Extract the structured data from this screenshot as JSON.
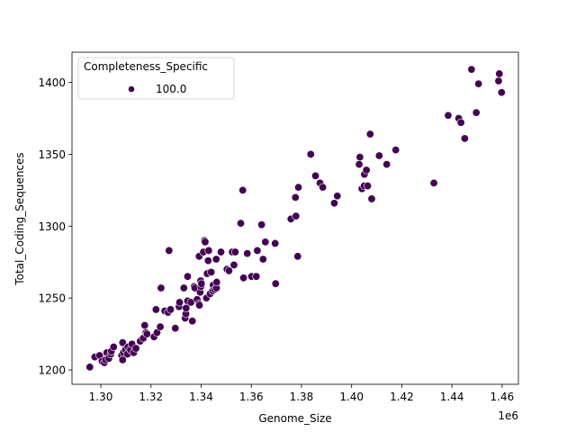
{
  "chart_data": {
    "type": "scatter",
    "xlabel": "Genome_Size",
    "ylabel": "Total_Coding_Sequences",
    "x_offset_label": "1e6",
    "x_scale": 1000000,
    "xlim": [
      1.2885,
      1.4665
    ],
    "ylim": [
      1190,
      1421
    ],
    "xticks": [
      1.3,
      1.32,
      1.34,
      1.36,
      1.38,
      1.4,
      1.42,
      1.44,
      1.46
    ],
    "xtick_labels": [
      "1.30",
      "1.32",
      "1.34",
      "1.36",
      "1.38",
      "1.40",
      "1.42",
      "1.44",
      "1.46"
    ],
    "yticks": [
      1200,
      1250,
      1300,
      1350,
      1400
    ],
    "ytick_labels": [
      "1200",
      "1250",
      "1300",
      "1350",
      "1400"
    ],
    "grid": false,
    "legend": {
      "title": "Completeness_Specific",
      "placement": "top-left",
      "entries": [
        {
          "label": "100.0",
          "color": "#440154"
        }
      ]
    },
    "series": [
      {
        "label": "100.0",
        "color": "#440154",
        "points": [
          [
            1.2956,
            1202
          ],
          [
            1.2976,
            1209
          ],
          [
            1.2995,
            1210
          ],
          [
            1.3005,
            1206
          ],
          [
            1.3014,
            1205
          ],
          [
            1.3019,
            1207
          ],
          [
            1.3024,
            1212
          ],
          [
            1.3032,
            1208
          ],
          [
            1.304,
            1211
          ],
          [
            1.3042,
            1213
          ],
          [
            1.3051,
            1216
          ],
          [
            1.3083,
            1210
          ],
          [
            1.3087,
            1207
          ],
          [
            1.309,
            1212
          ],
          [
            1.3098,
            1214
          ],
          [
            1.3087,
            1219
          ],
          [
            1.3108,
            1216
          ],
          [
            1.3106,
            1211
          ],
          [
            1.3118,
            1214
          ],
          [
            1.3124,
            1218
          ],
          [
            1.3131,
            1212
          ],
          [
            1.314,
            1215
          ],
          [
            1.3157,
            1220
          ],
          [
            1.3169,
            1222
          ],
          [
            1.3175,
            1231
          ],
          [
            1.318,
            1226
          ],
          [
            1.3184,
            1225
          ],
          [
            1.3212,
            1223
          ],
          [
            1.3224,
            1226
          ],
          [
            1.322,
            1242
          ],
          [
            1.3237,
            1230
          ],
          [
            1.324,
            1257
          ],
          [
            1.3255,
            1241
          ],
          [
            1.3268,
            1240
          ],
          [
            1.3278,
            1242
          ],
          [
            1.3272,
            1283
          ],
          [
            1.3297,
            1229
          ],
          [
            1.3312,
            1244
          ],
          [
            1.3314,
            1247
          ],
          [
            1.3331,
            1257
          ],
          [
            1.3336,
            1236
          ],
          [
            1.3339,
            1239
          ],
          [
            1.334,
            1243
          ],
          [
            1.3346,
            1248
          ],
          [
            1.3346,
            1265
          ],
          [
            1.3359,
            1247
          ],
          [
            1.3365,
            1234
          ],
          [
            1.3372,
            1258
          ],
          [
            1.3375,
            1257
          ],
          [
            1.3384,
            1249
          ],
          [
            1.3391,
            1246
          ],
          [
            1.3393,
            1245
          ],
          [
            1.3396,
            1254
          ],
          [
            1.3398,
            1262
          ],
          [
            1.3399,
            1258
          ],
          [
            1.3392,
            1279
          ],
          [
            1.3401,
            1260
          ],
          [
            1.3409,
            1282
          ],
          [
            1.3414,
            1290
          ],
          [
            1.3416,
            1289
          ],
          [
            1.3421,
            1250
          ],
          [
            1.3424,
            1267
          ],
          [
            1.3428,
            1276
          ],
          [
            1.343,
            1283
          ],
          [
            1.3436,
            1253
          ],
          [
            1.344,
            1268
          ],
          [
            1.3446,
            1255
          ],
          [
            1.3448,
            1259
          ],
          [
            1.3454,
            1256
          ],
          [
            1.3461,
            1257
          ],
          [
            1.3462,
            1261
          ],
          [
            1.346,
            1277
          ],
          [
            1.3479,
            1282
          ],
          [
            1.3503,
            1270
          ],
          [
            1.3511,
            1269
          ],
          [
            1.3524,
            1282
          ],
          [
            1.3531,
            1273
          ],
          [
            1.3536,
            1282
          ],
          [
            1.3558,
            1302
          ],
          [
            1.3569,
            1264
          ],
          [
            1.3566,
            1325
          ],
          [
            1.3584,
            1281
          ],
          [
            1.3601,
            1265
          ],
          [
            1.362,
            1265
          ],
          [
            1.3624,
            1283
          ],
          [
            1.3641,
            1301
          ],
          [
            1.3647,
            1277
          ],
          [
            1.3656,
            1289
          ],
          [
            1.3695,
            1288
          ],
          [
            1.3697,
            1260
          ],
          [
            1.3758,
            1305
          ],
          [
            1.3776,
            1320
          ],
          [
            1.3778,
            1307
          ],
          [
            1.3785,
            1279
          ],
          [
            1.3788,
            1327
          ],
          [
            1.3837,
            1350
          ],
          [
            1.3856,
            1335
          ],
          [
            1.3874,
            1330
          ],
          [
            1.3885,
            1327
          ],
          [
            1.3931,
            1316
          ],
          [
            1.3943,
            1321
          ],
          [
            1.4033,
            1348
          ],
          [
            1.403,
            1343
          ],
          [
            1.4041,
            1326
          ],
          [
            1.405,
            1328
          ],
          [
            1.4051,
            1336
          ],
          [
            1.4059,
            1339
          ],
          [
            1.4064,
            1328
          ],
          [
            1.4074,
            1364
          ],
          [
            1.408,
            1319
          ],
          [
            1.411,
            1349
          ],
          [
            1.414,
            1343
          ],
          [
            1.4176,
            1353
          ],
          [
            1.4328,
            1330
          ],
          [
            1.4385,
            1377
          ],
          [
            1.4427,
            1375
          ],
          [
            1.4436,
            1372
          ],
          [
            1.4451,
            1361
          ],
          [
            1.4478,
            1409
          ],
          [
            1.4497,
            1379
          ],
          [
            1.4506,
            1399
          ],
          [
            1.4586,
            1401
          ],
          [
            1.4589,
            1406
          ],
          [
            1.4598,
            1393
          ]
        ]
      }
    ]
  }
}
